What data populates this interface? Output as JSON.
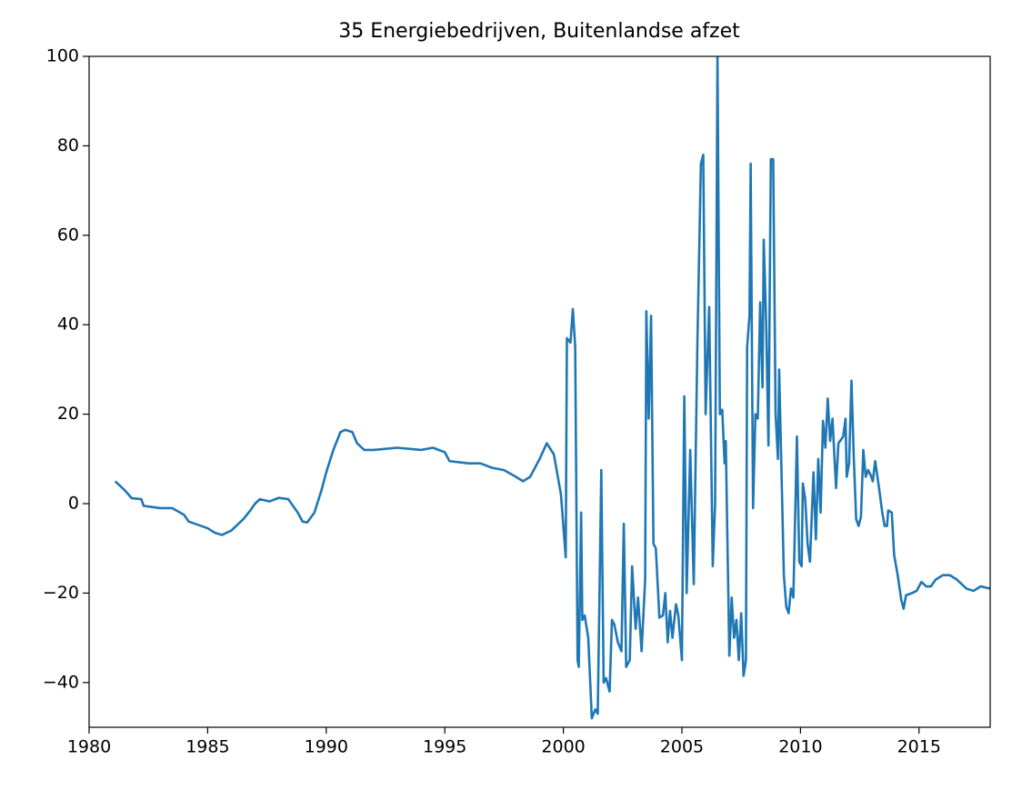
{
  "chart_data": {
    "type": "line",
    "title": "35 Energiebedrijven, Buitenlandse afzet",
    "x": [
      1981.1,
      1981.5,
      1981.8,
      1982.2,
      1982.3,
      1983,
      1983.5,
      1984,
      1984.2,
      1985,
      1985.3,
      1985.6,
      1986,
      1986.5,
      1986.8,
      1987,
      1987.2,
      1987.6,
      1988,
      1988.4,
      1988.8,
      1989,
      1989.2,
      1989.5,
      1989.8,
      1990,
      1990.3,
      1990.6,
      1990.8,
      1991.1,
      1991.3,
      1991.6,
      1992,
      1993,
      1994,
      1994.5,
      1995,
      1995.2,
      1996,
      1996.5,
      1997,
      1997.5,
      1998,
      1998.3,
      1998.6,
      1999,
      1999.3,
      1999.6,
      1999.9,
      2000.1,
      2000.15,
      2000.3,
      2000.4,
      2000.5,
      2000.6,
      2000.65,
      2000.75,
      2000.8,
      2000.9,
      2001.05,
      2001.2,
      2001.35,
      2001.45,
      2001.6,
      2001.7,
      2001.8,
      2001.95,
      2002.05,
      2002.15,
      2002.3,
      2002.45,
      2002.55,
      2002.65,
      2002.8,
      2002.9,
      2003.05,
      2003.15,
      2003.3,
      2003.45,
      2003.5,
      2003.6,
      2003.7,
      2003.8,
      2003.9,
      2004.05,
      2004.2,
      2004.3,
      2004.4,
      2004.5,
      2004.6,
      2004.75,
      2004.85,
      2005.0,
      2005.1,
      2005.2,
      2005.35,
      2005.5,
      2005.65,
      2005.8,
      2005.9,
      2006.0,
      2006.15,
      2006.3,
      2006.4,
      2006.5,
      2006.6,
      2006.7,
      2006.8,
      2006.85,
      2007.0,
      2007.1,
      2007.2,
      2007.3,
      2007.4,
      2007.5,
      2007.6,
      2007.7,
      2007.75,
      2007.85,
      2007.9,
      2008.0,
      2008.1,
      2008.2,
      2008.3,
      2008.4,
      2008.45,
      2008.55,
      2008.65,
      2008.75,
      2008.85,
      2008.95,
      2009.05,
      2009.1,
      2009.3,
      2009.4,
      2009.5,
      2009.6,
      2009.7,
      2009.85,
      2009.95,
      2010.05,
      2010.1,
      2010.2,
      2010.3,
      2010.4,
      2010.55,
      2010.65,
      2010.75,
      2010.85,
      2010.95,
      2011.05,
      2011.15,
      2011.25,
      2011.35,
      2011.5,
      2011.6,
      2011.8,
      2011.9,
      2011.95,
      2012.05,
      2012.15,
      2012.25,
      2012.35,
      2012.45,
      2012.55,
      2012.65,
      2012.75,
      2012.85,
      2012.95,
      2013.05,
      2013.15,
      2013.3,
      2013.45,
      2013.55,
      2013.65,
      2013.7,
      2013.85,
      2013.95,
      2014.1,
      2014.25,
      2014.35,
      2014.45,
      2014.7,
      2014.9,
      2015.1,
      2015.3,
      2015.5,
      2015.7,
      2016,
      2016.3,
      2016.6,
      2017,
      2017.3,
      2017.6,
      2018
    ],
    "series": [
      {
        "color": "#1f77b4",
        "values": [
          5,
          3,
          1.2,
          1,
          -0.5,
          -1,
          -1,
          -2.5,
          -4,
          -5.5,
          -6.5,
          -7,
          -6,
          -3.5,
          -1.5,
          0,
          1,
          0.5,
          1.3,
          1,
          -2,
          -4,
          -4.2,
          -2,
          3,
          7,
          12,
          16,
          16.5,
          16,
          13.5,
          12,
          12,
          12.5,
          12,
          12.5,
          11.5,
          9.5,
          9,
          9,
          8,
          7.5,
          6,
          5,
          6,
          10,
          13.5,
          11,
          2,
          -12,
          37,
          36,
          43.5,
          35,
          -35,
          -36.5,
          -2,
          -26,
          -25,
          -30,
          -48,
          -46,
          -47,
          7.5,
          -40,
          -39,
          -42,
          -26,
          -27,
          -31,
          -33,
          -4.5,
          -36.5,
          -35,
          -14,
          -28,
          -21,
          -33,
          -17,
          43,
          19,
          42,
          -9,
          -10,
          -25.5,
          -25,
          -20,
          -31,
          -24,
          -30,
          -22.5,
          -25,
          -35,
          24,
          -20,
          12,
          -18,
          35,
          76,
          78,
          20,
          44,
          -14,
          0,
          100,
          20,
          21,
          9,
          14,
          -34,
          -21,
          -30,
          -26,
          -35,
          -24.5,
          -38.5,
          -35,
          35,
          42,
          76,
          -1,
          20,
          19,
          45,
          26,
          59,
          41,
          13,
          77,
          77,
          20,
          10,
          30,
          -16,
          -23,
          -24.5,
          -19,
          -21,
          15,
          -13,
          -14,
          4.5,
          1,
          -9,
          -13,
          7,
          -8,
          10,
          -2,
          18.5,
          12.5,
          23.5,
          14,
          19,
          3.5,
          13.5,
          15,
          19,
          6,
          9,
          27.5,
          10,
          -3.5,
          -5,
          -3,
          12,
          6,
          7.5,
          6.5,
          5,
          9.5,
          4,
          -2,
          -5,
          -5,
          -1.5,
          -2,
          -11.5,
          -16,
          -21.5,
          -23.5,
          -20.5,
          -20,
          -19.5,
          -17.5,
          -18.5,
          -18.5,
          -17,
          -16,
          -16,
          -17,
          -19,
          -19.5,
          -18.5,
          -19
        ]
      }
    ],
    "xlim": [
      1980,
      2018
    ],
    "xticks": [
      1980,
      1985,
      1990,
      1995,
      2000,
      2005,
      2010,
      2015
    ],
    "ylim": [
      -50,
      100
    ],
    "yticks": [
      {
        "value": -40,
        "label": "−40"
      },
      {
        "value": -20,
        "label": "−20"
      },
      0,
      20,
      40,
      60,
      80,
      100
    ]
  }
}
